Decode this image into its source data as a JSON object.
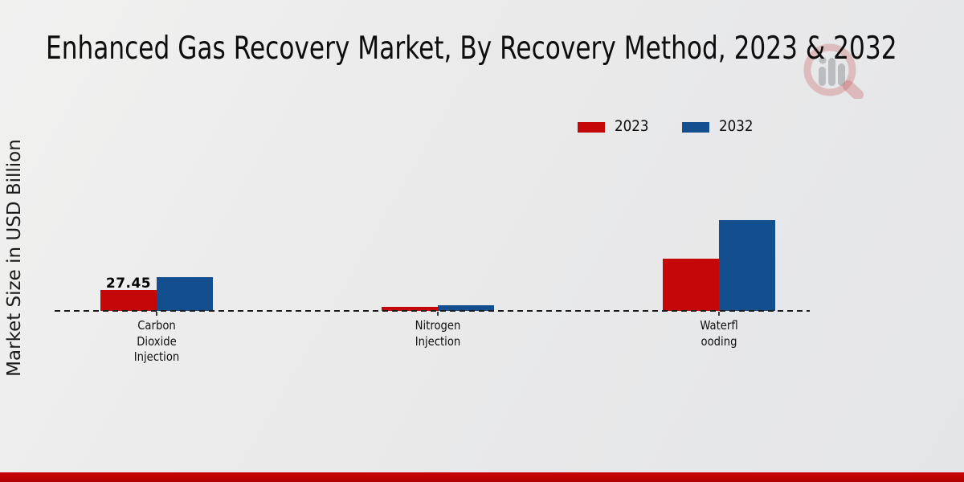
{
  "title": "Enhanced Gas Recovery Market, By Recovery Method, 2023 & 2032",
  "y_axis_label": "Market Size in USD Billion",
  "legend": {
    "items": [
      {
        "label": "2023",
        "color": "#c40808"
      },
      {
        "label": "2032",
        "color": "#134f8e"
      }
    ]
  },
  "colors": {
    "bar_2023": "#c40808",
    "bar_2032": "#134f8e",
    "bottom_strip": "#c20202",
    "baseline": "#1c1c1c"
  },
  "chart_data": {
    "type": "bar",
    "title": "Enhanced Gas Recovery Market, By Recovery Method, 2023 & 2032",
    "ylabel": "Market Size in USD Billion",
    "xlabel": "",
    "categories": [
      "Carbon Dioxide Injection",
      "Nitrogen Injection",
      "Waterflooding"
    ],
    "categories_display": [
      "Carbon\nDioxide\nInjection",
      "Nitrogen\nInjection",
      "Waterfl\nooding"
    ],
    "series": [
      {
        "name": "2023",
        "color": "#c40808",
        "values": [
          27.45,
          5.2,
          68.5
        ]
      },
      {
        "name": "2032",
        "color": "#134f8e",
        "values": [
          44.3,
          7.9,
          119.5
        ]
      }
    ],
    "value_labels": [
      {
        "series": "2023",
        "category": "Carbon Dioxide Injection",
        "text": "27.45"
      }
    ],
    "baseline_value": 0,
    "baseline_style": "dashed",
    "grid": false,
    "legend_position": "top-right"
  }
}
